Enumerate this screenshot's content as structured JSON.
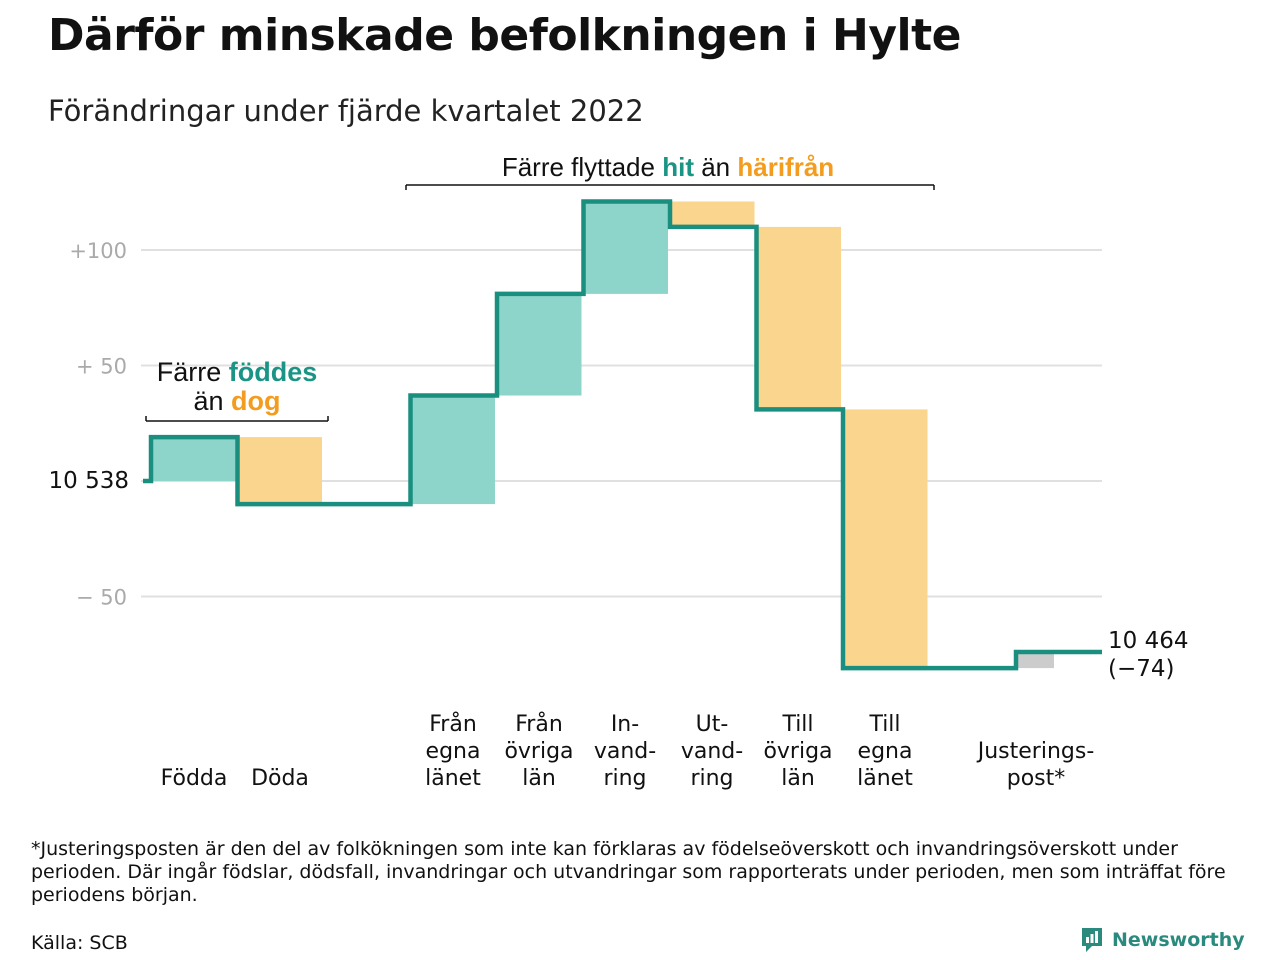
{
  "title": "Därför minskade befolkningen i Hylte",
  "subtitle": "Förändringar under fjärde kvartalet 2022",
  "colors": {
    "increase_fill": "#8dd5cb",
    "decrease_fill": "#fad58d",
    "adjustment_fill": "#cccccc",
    "step_line": "#1a8f80",
    "teal_text": "#1a9484",
    "orange_text": "#f39c1e",
    "grid": "#e0e0e0",
    "tick_text": "#aaaaaa",
    "brand": "#2a8a7e"
  },
  "chart_data": {
    "type": "waterfall",
    "start_value": 10538,
    "end_value": 10464,
    "net_change": -74,
    "start_label": "10 538",
    "end_label": "10 464",
    "end_change_label": "(−74)",
    "y_range": [
      -82,
      122
    ],
    "y_ticks": [
      {
        "value": 100,
        "label": "+100"
      },
      {
        "value": 50,
        "label": "+ 50"
      },
      {
        "value": 0,
        "label": ""
      },
      {
        "value": -50,
        "label": "− 50"
      }
    ],
    "grid": true,
    "steps": [
      {
        "label_lines": [
          "Födda"
        ],
        "delta": 19,
        "kind": "increase"
      },
      {
        "label_lines": [
          "Döda"
        ],
        "delta": -29,
        "kind": "decrease"
      },
      {
        "label_lines": [
          "Från",
          "egna",
          "länet"
        ],
        "delta": 47,
        "kind": "increase"
      },
      {
        "label_lines": [
          "Från",
          "övriga",
          "län"
        ],
        "delta": 44,
        "kind": "increase"
      },
      {
        "label_lines": [
          "In-",
          "vand-",
          "ring"
        ],
        "delta": 40,
        "kind": "increase"
      },
      {
        "label_lines": [
          "Ut-",
          "vand-",
          "ring"
        ],
        "delta": -11,
        "kind": "decrease"
      },
      {
        "label_lines": [
          "Till",
          "övriga",
          "län"
        ],
        "delta": -79,
        "kind": "decrease"
      },
      {
        "label_lines": [
          "Till",
          "egna",
          "länet"
        ],
        "delta": -112,
        "kind": "decrease"
      },
      {
        "label_lines": [
          "Justerings-",
          "post*"
        ],
        "delta": 7,
        "kind": "adjustment"
      }
    ],
    "annotations": [
      {
        "id": "births_deaths",
        "parts": [
          {
            "line": 0,
            "text": "Färre ",
            "color": "default"
          },
          {
            "line": 0,
            "text": "föddes",
            "color": "teal"
          },
          {
            "line": 1,
            "text": "än ",
            "color": "default"
          },
          {
            "line": 1,
            "text": "dog",
            "color": "orange"
          }
        ]
      },
      {
        "id": "migration",
        "parts": [
          {
            "line": 0,
            "text": "Färre flyttade ",
            "color": "default"
          },
          {
            "line": 0,
            "text": "hit",
            "color": "teal"
          },
          {
            "line": 0,
            "text": " än ",
            "color": "default"
          },
          {
            "line": 0,
            "text": "härifrån",
            "color": "orange"
          }
        ]
      }
    ]
  },
  "footnote": "*Justeringsposten är den del av folkökningen som inte kan förklaras av födelseöverskott och invandringsöverskott under perioden. Där ingår födslar, dödsfall, invandringar och utvandringar som rapporterats under perioden, men som inträffat före periodens början.",
  "source": "Källa: SCB",
  "brand_name": "Newsworthy",
  "brand_icon": "newsworthy-logo-icon"
}
